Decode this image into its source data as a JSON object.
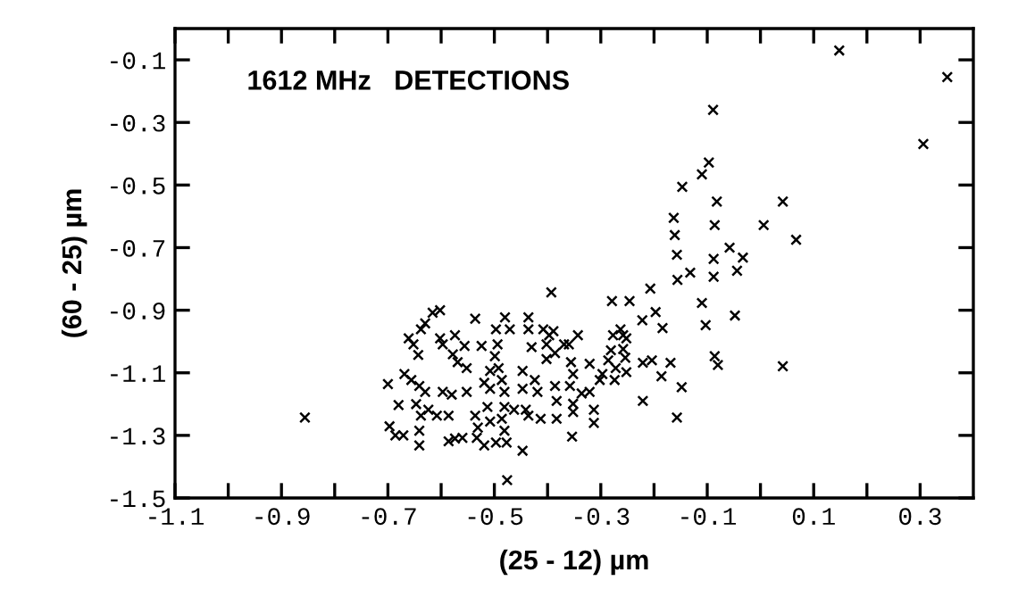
{
  "chart_data": {
    "type": "scatter",
    "title": "1612 MHz   DETECTIONS",
    "xlabel": "(25 - 12) µm",
    "ylabel": "(60 - 25) µm",
    "xlim": [
      -1.1,
      0.4
    ],
    "ylim": [
      -1.5,
      0.0
    ],
    "xticks": [
      -1.1,
      {
        "value": -1.0,
        "label": null
      },
      -0.9,
      {
        "value": -0.8,
        "label": null
      },
      -0.7,
      {
        "value": -0.6,
        "label": null
      },
      -0.5,
      {
        "value": -0.4,
        "label": null
      },
      -0.3,
      {
        "value": -0.2,
        "label": null
      },
      -0.1,
      {
        "value": 0.0,
        "label": null
      },
      0.1,
      {
        "value": 0.2,
        "label": null
      },
      0.3
    ],
    "yticks": [
      -1.5,
      -1.3,
      -1.1,
      -0.9,
      -0.7,
      -0.5,
      -0.3,
      -0.1
    ],
    "marker": "cross",
    "series": [
      {
        "color": "#000000",
        "x": [
          0.148,
          0.351,
          0.306,
          -0.089,
          -0.097,
          -0.11,
          -0.147,
          -0.082,
          0.042,
          -0.163,
          -0.161,
          -0.157,
          -0.086,
          0.006,
          0.067,
          -0.058,
          -0.088,
          -0.033,
          -0.132,
          -0.156,
          -0.088,
          -0.044,
          -0.207,
          -0.393,
          -0.279,
          -0.246,
          -0.11,
          -0.048,
          -0.197,
          -0.222,
          -0.184,
          -0.103,
          -0.086,
          -0.08,
          0.042,
          -0.169,
          -0.186,
          -0.148,
          -0.157,
          -0.221,
          -0.221,
          -0.204,
          -0.856,
          -0.476,
          -0.354,
          -0.313,
          -0.313,
          -0.7,
          -0.697,
          -0.686,
          -0.671,
          -0.68,
          -0.669,
          -0.661,
          -0.652,
          -0.643,
          -0.638,
          -0.63,
          -0.616,
          -0.602,
          -0.656,
          -0.641,
          -0.63,
          -0.647,
          -0.638,
          -0.641,
          -0.641,
          -0.624,
          -0.608,
          -0.602,
          -0.597,
          -0.574,
          -0.578,
          -0.569,
          -0.556,
          -0.536,
          -0.524,
          -0.597,
          -0.58,
          -0.552,
          -0.552,
          -0.586,
          -0.586,
          -0.574,
          -0.56,
          -0.536,
          -0.531,
          -0.533,
          -0.519,
          -0.508,
          -0.513,
          -0.497,
          -0.497,
          -0.494,
          -0.499,
          -0.508,
          -0.519,
          -0.508,
          -0.492,
          -0.486,
          -0.481,
          -0.481,
          -0.486,
          -0.481,
          -0.477,
          -0.48,
          -0.471,
          -0.463,
          -0.447,
          -0.447,
          -0.441,
          -0.447,
          -0.436,
          -0.436,
          -0.43,
          -0.424,
          -0.419,
          -0.436,
          -0.413,
          -0.408,
          -0.402,
          -0.402,
          -0.397,
          -0.389,
          -0.386,
          -0.386,
          -0.383,
          -0.383,
          -0.369,
          -0.36,
          -0.356,
          -0.352,
          -0.358,
          -0.352,
          -0.352,
          -0.343,
          -0.336,
          -0.321,
          -0.321,
          -0.302,
          -0.297,
          -0.286,
          -0.281,
          -0.277,
          -0.272,
          -0.263,
          -0.258,
          -0.258,
          -0.252,
          -0.254,
          -0.252,
          -0.274
        ],
        "values": [
          -0.07,
          -0.155,
          -0.369,
          -0.26,
          -0.428,
          -0.466,
          -0.506,
          -0.553,
          -0.553,
          -0.605,
          -0.66,
          -0.723,
          -0.628,
          -0.628,
          -0.675,
          -0.7,
          -0.736,
          -0.732,
          -0.78,
          -0.803,
          -0.793,
          -0.774,
          -0.831,
          -0.843,
          -0.871,
          -0.871,
          -0.877,
          -0.917,
          -0.906,
          -0.932,
          -0.957,
          -0.948,
          -1.047,
          -1.075,
          -1.079,
          -1.068,
          -1.111,
          -1.146,
          -1.243,
          -1.19,
          -1.068,
          -1.06,
          -1.243,
          -1.443,
          -1.304,
          -1.26,
          -1.218,
          -1.136,
          -1.271,
          -1.3,
          -1.3,
          -1.203,
          -1.104,
          -0.99,
          -1.009,
          -1.043,
          -0.961,
          -0.942,
          -0.908,
          -0.9,
          -1.123,
          -1.142,
          -1.161,
          -1.2,
          -1.237,
          -1.285,
          -1.332,
          -1.218,
          -1.237,
          -0.99,
          -1.009,
          -0.98,
          -1.041,
          -1.066,
          -1.014,
          -0.927,
          -1.014,
          -1.161,
          -1.17,
          -1.085,
          -1.161,
          -1.237,
          -1.319,
          -1.31,
          -1.308,
          -1.237,
          -1.275,
          -1.308,
          -1.332,
          -1.256,
          -1.209,
          -1.323,
          -0.961,
          -1.009,
          -1.047,
          -1.094,
          -1.132,
          -1.151,
          -1.085,
          -1.123,
          -1.161,
          -1.209,
          -1.247,
          -1.285,
          -1.323,
          -0.923,
          -0.961,
          -1.218,
          -1.094,
          -1.151,
          -1.218,
          -1.349,
          -0.923,
          -0.961,
          -1.018,
          -1.123,
          -1.161,
          -1.237,
          -1.247,
          -0.961,
          -1.009,
          -1.056,
          -0.98,
          -0.967,
          -1.037,
          -1.142,
          -1.19,
          -1.247,
          -1.009,
          -1.009,
          -1.066,
          -1.104,
          -1.142,
          -1.199,
          -1.225,
          -0.98,
          -1.166,
          -1.071,
          -1.161,
          -1.123,
          -1.104,
          -1.06,
          -1.028,
          -0.98,
          -1.085,
          -0.961,
          -0.98,
          -1.024,
          -0.99,
          -1.052,
          -1.098,
          -1.123
        ]
      }
    ]
  }
}
